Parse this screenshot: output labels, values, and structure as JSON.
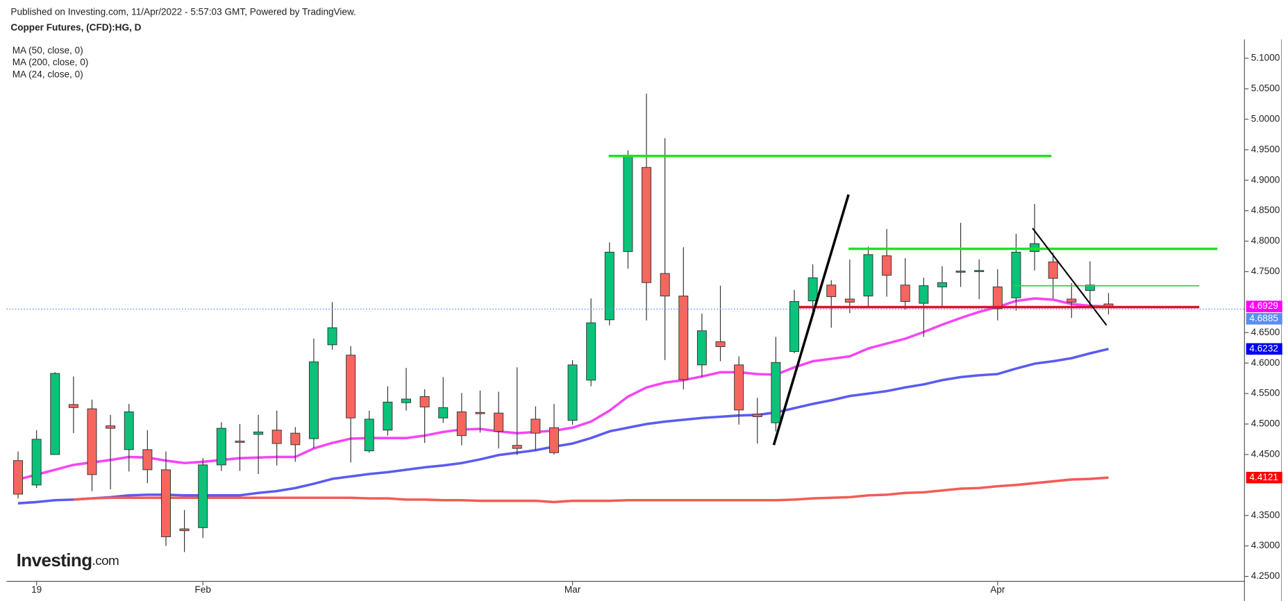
{
  "chart_data": {
    "type": "candlestick",
    "subtitle": "Published on Investing.com, 11/Apr/2022 - 5:57:03 GMT, Powered by TradingView.",
    "title": "Copper Futures, (CFD):HG, D",
    "categories": [
      null,
      "19",
      null,
      null,
      null,
      null,
      null,
      null,
      null,
      null,
      "Feb",
      null,
      null,
      null,
      null,
      null,
      null,
      null,
      null,
      null,
      null,
      null,
      null,
      null,
      null,
      null,
      null,
      null,
      null,
      null,
      "Mar",
      null,
      null,
      null,
      null,
      null,
      null,
      null,
      null,
      null,
      null,
      null,
      null,
      null,
      null,
      null,
      null,
      null,
      null,
      null,
      null,
      null,
      null,
      "Apr",
      null,
      null,
      null,
      null,
      null,
      null
    ],
    "open": [
      4.44,
      4.4,
      4.45,
      4.532,
      4.525,
      4.497,
      4.458,
      4.458,
      4.425,
      4.328,
      4.33,
      4.433,
      4.472,
      4.483,
      4.49,
      4.485,
      4.476,
      4.63,
      4.613,
      4.456,
      4.49,
      4.535,
      4.545,
      4.51,
      4.52,
      4.519,
      4.518,
      4.465,
      4.508,
      4.494,
      4.506,
      4.572,
      4.671,
      4.783,
      4.921,
      4.747,
      4.71,
      4.597,
      4.635,
      4.597,
      4.516,
      4.502,
      4.619,
      4.702,
      4.728,
      4.705,
      4.71,
      4.776,
      4.728,
      4.698,
      4.725,
      4.75,
      4.75,
      4.725,
      4.707,
      4.783,
      4.766,
      4.705,
      4.719,
      4.697
    ],
    "high": [
      4.455,
      4.49,
      4.585,
      4.578,
      4.54,
      4.515,
      4.533,
      4.49,
      4.455,
      4.359,
      4.444,
      4.503,
      4.5,
      4.515,
      4.522,
      4.495,
      4.64,
      4.7,
      4.628,
      4.522,
      4.562,
      4.592,
      4.557,
      4.577,
      4.551,
      4.555,
      4.553,
      4.593,
      4.529,
      4.533,
      4.605,
      4.706,
      4.798,
      4.949,
      5.042,
      4.969,
      4.79,
      4.681,
      4.727,
      4.611,
      4.543,
      4.643,
      4.72,
      4.762,
      4.736,
      4.77,
      4.791,
      4.82,
      4.772,
      4.74,
      4.759,
      4.83,
      4.77,
      4.754,
      4.812,
      4.861,
      4.781,
      4.731,
      4.767,
      4.715
    ],
    "low": [
      4.378,
      4.395,
      4.45,
      4.485,
      4.39,
      4.393,
      4.422,
      4.403,
      4.3,
      4.29,
      4.313,
      4.423,
      4.423,
      4.418,
      4.432,
      4.438,
      4.46,
      4.622,
      4.437,
      4.453,
      4.481,
      4.522,
      4.469,
      4.502,
      4.465,
      4.486,
      4.46,
      4.449,
      4.457,
      4.45,
      4.499,
      4.562,
      4.662,
      4.755,
      4.67,
      4.605,
      4.557,
      4.577,
      4.603,
      4.499,
      4.468,
      4.488,
      4.616,
      4.68,
      4.658,
      4.682,
      4.693,
      4.709,
      4.688,
      4.643,
      4.693,
      4.725,
      4.705,
      4.67,
      4.686,
      4.752,
      4.706,
      4.674,
      4.694,
      4.68
    ],
    "close": [
      4.385,
      4.475,
      4.583,
      4.527,
      4.417,
      4.493,
      4.52,
      4.425,
      4.315,
      4.325,
      4.433,
      4.493,
      4.471,
      4.487,
      4.468,
      4.466,
      4.602,
      4.658,
      4.51,
      4.508,
      4.536,
      4.541,
      4.528,
      4.527,
      4.481,
      4.517,
      4.488,
      4.46,
      4.485,
      4.453,
      4.597,
      4.666,
      4.782,
      4.94,
      4.732,
      4.71,
      4.573,
      4.653,
      4.627,
      4.523,
      4.512,
      4.601,
      4.701,
      4.74,
      4.709,
      4.7,
      4.778,
      4.744,
      4.701,
      4.727,
      4.732,
      4.751,
      4.752,
      4.689,
      4.782,
      4.796,
      4.739,
      4.7,
      4.728,
      4.6929
    ],
    "up_color": "#0bc27a",
    "down_color": "#f7665e",
    "series": [
      {
        "name": "MA (50, close, 0)",
        "color": "#5b5bef",
        "values": [
          4.37,
          4.372,
          4.375,
          4.376,
          4.378,
          4.38,
          4.383,
          4.384,
          4.384,
          4.383,
          4.383,
          4.383,
          4.383,
          4.387,
          4.39,
          4.395,
          4.402,
          4.41,
          4.414,
          4.418,
          4.421,
          4.425,
          4.429,
          4.432,
          4.436,
          4.442,
          4.449,
          4.453,
          4.457,
          4.463,
          4.468,
          4.477,
          4.488,
          4.494,
          4.5,
          4.504,
          4.507,
          4.51,
          4.512,
          4.514,
          4.515,
          4.519,
          4.526,
          4.533,
          4.539,
          4.546,
          4.55,
          4.554,
          4.56,
          4.565,
          4.572,
          4.577,
          4.58,
          4.582,
          4.591,
          4.599,
          4.603,
          4.608,
          4.616,
          4.6232
        ]
      },
      {
        "name": "MA (200, close, 0)",
        "color": "#f25c56",
        "values": [
          null,
          null,
          null,
          4.376,
          4.378,
          4.379,
          4.379,
          4.379,
          4.379,
          4.379,
          4.379,
          4.379,
          4.379,
          4.379,
          4.379,
          4.379,
          4.379,
          4.379,
          4.379,
          4.378,
          4.378,
          4.376,
          4.376,
          4.375,
          4.375,
          4.374,
          4.374,
          4.374,
          4.374,
          4.372,
          4.374,
          4.374,
          4.374,
          4.375,
          4.375,
          4.375,
          4.375,
          4.375,
          4.375,
          4.375,
          4.375,
          4.375,
          4.376,
          4.378,
          4.379,
          4.38,
          4.383,
          4.384,
          4.387,
          4.388,
          4.391,
          4.394,
          4.395,
          4.398,
          4.4,
          4.403,
          4.406,
          4.409,
          4.41,
          4.4121
        ]
      },
      {
        "name": "MA (24, close, 0)",
        "color": "#f545f5",
        "values": [
          4.409,
          4.417,
          4.425,
          4.433,
          4.437,
          4.441,
          4.446,
          4.445,
          4.44,
          4.436,
          4.438,
          4.441,
          4.444,
          4.445,
          4.446,
          4.446,
          4.46,
          4.469,
          4.476,
          4.477,
          4.477,
          4.477,
          4.481,
          4.487,
          4.491,
          4.492,
          4.488,
          4.485,
          4.487,
          4.489,
          4.494,
          4.504,
          4.522,
          4.545,
          4.56,
          4.568,
          4.572,
          4.578,
          4.585,
          4.585,
          4.582,
          4.581,
          4.593,
          4.603,
          4.607,
          4.611,
          4.624,
          4.632,
          4.64,
          4.651,
          4.663,
          4.674,
          4.684,
          4.692,
          4.702,
          4.706,
          4.704,
          4.697,
          4.694,
          4.6929
        ]
      }
    ],
    "price_labels": [
      {
        "value": 4.6929,
        "label": "4.6929",
        "color": "#ff00ff"
      },
      {
        "value": 4.6885,
        "label": "4.6885",
        "color": "#5b8def"
      },
      {
        "value": 4.6232,
        "label": "4.6232",
        "color": "#0000ee"
      },
      {
        "value": 4.4121,
        "label": "4.4121",
        "color": "#ff0000"
      }
    ],
    "ylim": [
      4.242,
      5.131
    ],
    "yticks": [
      {
        "value": 4.25,
        "label": "4.2500"
      },
      {
        "value": 4.3,
        "label": "4.3000"
      },
      {
        "value": 4.35,
        "label": "4.3500"
      },
      {
        "value": 4.45,
        "label": "4.4500"
      },
      {
        "value": 4.5,
        "label": "4.5000"
      },
      {
        "value": 4.55,
        "label": "4.5500"
      },
      {
        "value": 4.6,
        "label": "4.6000"
      },
      {
        "value": 4.65,
        "label": "4.6500"
      },
      {
        "value": 4.75,
        "label": "4.7500"
      },
      {
        "value": 4.8,
        "label": "4.8000"
      },
      {
        "value": 4.85,
        "label": "4.8500"
      },
      {
        "value": 4.9,
        "label": "4.9000"
      },
      {
        "value": 4.95,
        "label": "4.9500"
      },
      {
        "value": 5.0,
        "label": "5.0000"
      },
      {
        "value": 5.05,
        "label": "5.0500"
      },
      {
        "value": 5.1,
        "label": "5.1000"
      }
    ]
  },
  "logo": {
    "name": "Investing",
    "suffix": ".com"
  }
}
